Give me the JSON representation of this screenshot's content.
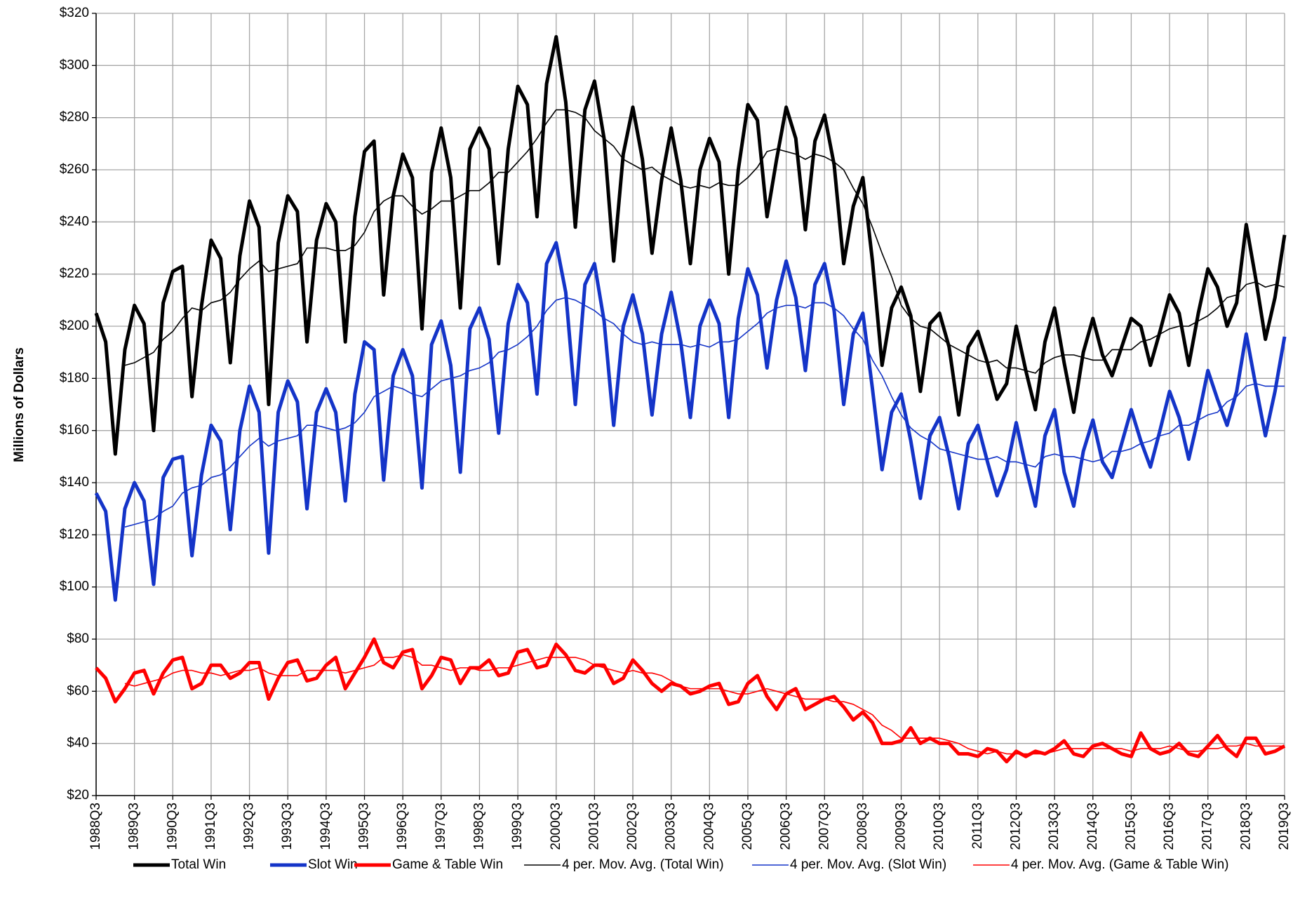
{
  "chart_data": {
    "type": "line",
    "y_label": "Millions of Dollars",
    "ylim": [
      20,
      320
    ],
    "yticks": [
      {
        "value": 20,
        "label": "$20"
      },
      {
        "value": 40,
        "label": "$40"
      },
      {
        "value": 60,
        "label": "$60"
      },
      {
        "value": 80,
        "label": "$80"
      },
      {
        "value": 100,
        "label": "$100"
      },
      {
        "value": 120,
        "label": "$120"
      },
      {
        "value": 140,
        "label": "$140"
      },
      {
        "value": 160,
        "label": "$160"
      },
      {
        "value": 180,
        "label": "$180"
      },
      {
        "value": 200,
        "label": "$200"
      },
      {
        "value": 220,
        "label": "$220"
      },
      {
        "value": 240,
        "label": "$240"
      },
      {
        "value": 260,
        "label": "$260"
      },
      {
        "value": 280,
        "label": "$280"
      },
      {
        "value": 300,
        "label": "$300"
      },
      {
        "value": 320,
        "label": "$320"
      }
    ],
    "grid": true,
    "legend": "bottom",
    "categories": [
      "1988Q3",
      null,
      null,
      null,
      "1989Q3",
      null,
      null,
      null,
      "1990Q3",
      null,
      null,
      null,
      "1991Q3",
      null,
      null,
      null,
      "1992Q3",
      null,
      null,
      null,
      "1993Q3",
      null,
      null,
      null,
      "1994Q3",
      null,
      null,
      null,
      "1995Q3",
      null,
      null,
      null,
      "1996Q3",
      null,
      null,
      null,
      "1997Q3",
      null,
      null,
      null,
      "1998Q3",
      null,
      null,
      null,
      "1999Q3",
      null,
      null,
      null,
      "2000Q3",
      null,
      null,
      null,
      "2001Q3",
      null,
      null,
      null,
      "2002Q3",
      null,
      null,
      null,
      "2003Q3",
      null,
      null,
      null,
      "2004Q3",
      null,
      null,
      null,
      "2005Q3",
      null,
      null,
      null,
      "2006Q3",
      null,
      null,
      null,
      "2007Q3",
      null,
      null,
      null,
      "2008Q3",
      null,
      null,
      null,
      "2009Q3",
      null,
      null,
      null,
      "2010Q3",
      null,
      null,
      null,
      "2011Q3",
      null,
      null,
      null,
      "2012Q3",
      null,
      null,
      null,
      "2013Q3",
      null,
      null,
      null,
      "2014Q3",
      null,
      null,
      null,
      "2015Q3",
      null,
      null,
      null,
      "2016Q3",
      null,
      null,
      null,
      "2017Q3",
      null,
      null,
      null,
      "2018Q3",
      null,
      null,
      null,
      "2019Q3"
    ],
    "series": [
      {
        "name": "Total Win",
        "color": "#000000",
        "values": [
          205,
          194,
          151,
          191,
          208,
          201,
          160,
          209,
          221,
          223,
          173,
          208,
          233,
          226,
          186,
          227,
          248,
          238,
          170,
          232,
          250,
          244,
          194,
          233,
          247,
          240,
          194,
          242,
          267,
          271,
          212,
          250,
          266,
          257,
          199,
          259,
          276,
          257,
          207,
          268,
          276,
          268,
          224,
          268,
          292,
          285,
          242,
          293,
          311,
          286,
          238,
          283,
          294,
          272,
          225,
          266,
          284,
          264,
          228,
          256,
          276,
          256,
          224,
          260,
          272,
          263,
          220,
          260,
          285,
          279,
          242,
          264,
          284,
          272,
          237,
          271,
          281,
          262,
          224,
          246,
          257,
          225,
          185,
          207,
          215,
          204,
          175,
          201,
          205,
          192,
          166,
          192,
          198,
          186,
          172,
          178,
          200,
          183,
          168,
          194,
          207,
          186,
          167,
          190,
          203,
          189,
          181,
          192,
          203,
          200,
          185,
          198,
          212,
          205,
          185,
          205,
          222,
          215,
          200,
          209,
          239,
          218,
          195,
          211,
          235
        ]
      },
      {
        "name": "Slot Win",
        "color": "#1434c8",
        "values": [
          136,
          129,
          95,
          130,
          140,
          133,
          101,
          142,
          149,
          150,
          112,
          143,
          162,
          156,
          122,
          160,
          177,
          167,
          113,
          167,
          179,
          171,
          130,
          167,
          176,
          167,
          133,
          174,
          194,
          191,
          141,
          181,
          191,
          181,
          138,
          193,
          202,
          185,
          144,
          199,
          207,
          195,
          159,
          201,
          216,
          209,
          174,
          224,
          232,
          213,
          170,
          216,
          224,
          202,
          162,
          200,
          212,
          197,
          166,
          197,
          213,
          194,
          165,
          200,
          210,
          201,
          165,
          203,
          222,
          212,
          184,
          210,
          225,
          211,
          183,
          216,
          224,
          206,
          170,
          197,
          205,
          176,
          145,
          167,
          174,
          156,
          134,
          158,
          165,
          150,
          130,
          155,
          162,
          148,
          135,
          145,
          163,
          146,
          131,
          158,
          168,
          144,
          131,
          152,
          164,
          148,
          142,
          155,
          168,
          156,
          146,
          160,
          175,
          165,
          149,
          165,
          183,
          172,
          162,
          175,
          197,
          177,
          158,
          175,
          196
        ]
      },
      {
        "name": "Game & Table Win",
        "color": "#ff0000",
        "values": [
          69,
          65,
          56,
          61,
          67,
          68,
          59,
          67,
          72,
          73,
          61,
          63,
          70,
          70,
          65,
          67,
          71,
          71,
          57,
          65,
          71,
          72,
          64,
          65,
          70,
          73,
          61,
          67,
          73,
          80,
          71,
          69,
          75,
          76,
          61,
          66,
          73,
          72,
          63,
          69,
          69,
          72,
          66,
          67,
          75,
          76,
          69,
          70,
          78,
          74,
          68,
          67,
          70,
          70,
          63,
          65,
          72,
          68,
          63,
          60,
          63,
          62,
          59,
          60,
          62,
          63,
          55,
          56,
          63,
          66,
          58,
          53,
          59,
          61,
          53,
          55,
          57,
          58,
          54,
          49,
          52,
          48,
          40,
          40,
          41,
          46,
          40,
          42,
          40,
          40,
          36,
          36,
          35,
          38,
          37,
          33,
          37,
          35,
          37,
          36,
          38,
          41,
          36,
          35,
          39,
          40,
          38,
          36,
          35,
          44,
          38,
          36,
          37,
          40,
          36,
          35,
          39,
          43,
          38,
          35,
          42,
          42,
          36,
          37,
          39
        ]
      },
      {
        "name": "4 per. Mov. Avg. (Total Win)",
        "color": "#000000",
        "values": [
          null,
          null,
          null,
          185,
          186,
          188,
          190,
          195,
          198,
          203,
          207,
          206,
          209,
          210,
          213,
          218,
          222,
          225,
          221,
          222,
          223,
          224,
          230,
          230,
          230,
          229,
          229,
          231,
          236,
          244,
          248,
          250,
          250,
          246,
          243,
          245,
          248,
          248,
          250,
          252,
          252,
          255,
          259,
          259,
          263,
          267,
          272,
          278,
          283,
          283,
          282,
          280,
          275,
          272,
          269,
          264,
          262,
          260,
          261,
          258,
          256,
          254,
          253,
          254,
          253,
          255,
          254,
          254,
          257,
          261,
          267,
          268,
          267,
          266,
          264,
          266,
          265,
          263,
          260,
          253,
          247,
          238,
          228,
          219,
          208,
          203,
          200,
          199,
          196,
          193,
          191,
          189,
          187,
          186,
          187,
          184,
          184,
          183,
          182,
          186,
          188,
          189,
          189,
          188,
          187,
          187,
          191,
          191,
          191,
          194,
          195,
          197,
          199,
          200,
          200,
          202,
          204,
          207,
          211,
          212,
          216,
          217,
          215,
          216,
          215
        ]
      },
      {
        "name": "4 per. Mov. Avg. (Slot Win)",
        "color": "#1434c8",
        "values": [
          null,
          null,
          null,
          123,
          124,
          125,
          126,
          129,
          131,
          136,
          138,
          139,
          142,
          143,
          146,
          150,
          154,
          157,
          154,
          156,
          157,
          158,
          162,
          162,
          161,
          160,
          161,
          163,
          167,
          173,
          175,
          177,
          176,
          174,
          173,
          176,
          179,
          180,
          181,
          183,
          184,
          186,
          190,
          191,
          193,
          196,
          200,
          206,
          210,
          211,
          210,
          208,
          206,
          203,
          201,
          197,
          194,
          193,
          194,
          193,
          193,
          193,
          192,
          193,
          192,
          194,
          194,
          195,
          198,
          201,
          205,
          207,
          208,
          208,
          207,
          209,
          209,
          207,
          204,
          199,
          195,
          187,
          181,
          173,
          166,
          161,
          158,
          156,
          153,
          152,
          151,
          150,
          149,
          149,
          150,
          148,
          148,
          147,
          146,
          150,
          151,
          150,
          150,
          149,
          148,
          149,
          152,
          152,
          153,
          155,
          156,
          158,
          159,
          162,
          162,
          164,
          166,
          167,
          171,
          173,
          177,
          178,
          177,
          177,
          177
        ]
      },
      {
        "name": "4 per. Mov. Avg. (Game & Table Win)",
        "color": "#ff0000",
        "values": [
          null,
          null,
          null,
          63,
          62,
          63,
          64,
          65,
          67,
          68,
          68,
          67,
          67,
          66,
          67,
          68,
          68,
          69,
          67,
          66,
          66,
          66,
          68,
          68,
          68,
          68,
          67,
          68,
          69,
          70,
          73,
          73,
          74,
          73,
          70,
          70,
          69,
          68,
          69,
          69,
          68,
          68,
          69,
          69,
          70,
          71,
          72,
          73,
          73,
          73,
          73,
          72,
          70,
          69,
          68,
          67,
          68,
          67,
          67,
          66,
          64,
          62,
          61,
          61,
          61,
          61,
          60,
          59,
          59,
          60,
          61,
          60,
          59,
          58,
          57,
          57,
          57,
          56,
          56,
          55,
          53,
          51,
          47,
          45,
          42,
          42,
          42,
          42,
          42,
          41,
          40,
          38,
          37,
          36,
          37,
          36,
          36,
          36,
          36,
          36,
          37,
          38,
          38,
          38,
          38,
          38,
          38,
          38,
          37,
          38,
          38,
          38,
          39,
          38,
          37,
          37,
          38,
          38,
          39,
          39,
          40,
          39,
          39,
          39,
          39
        ]
      }
    ]
  }
}
